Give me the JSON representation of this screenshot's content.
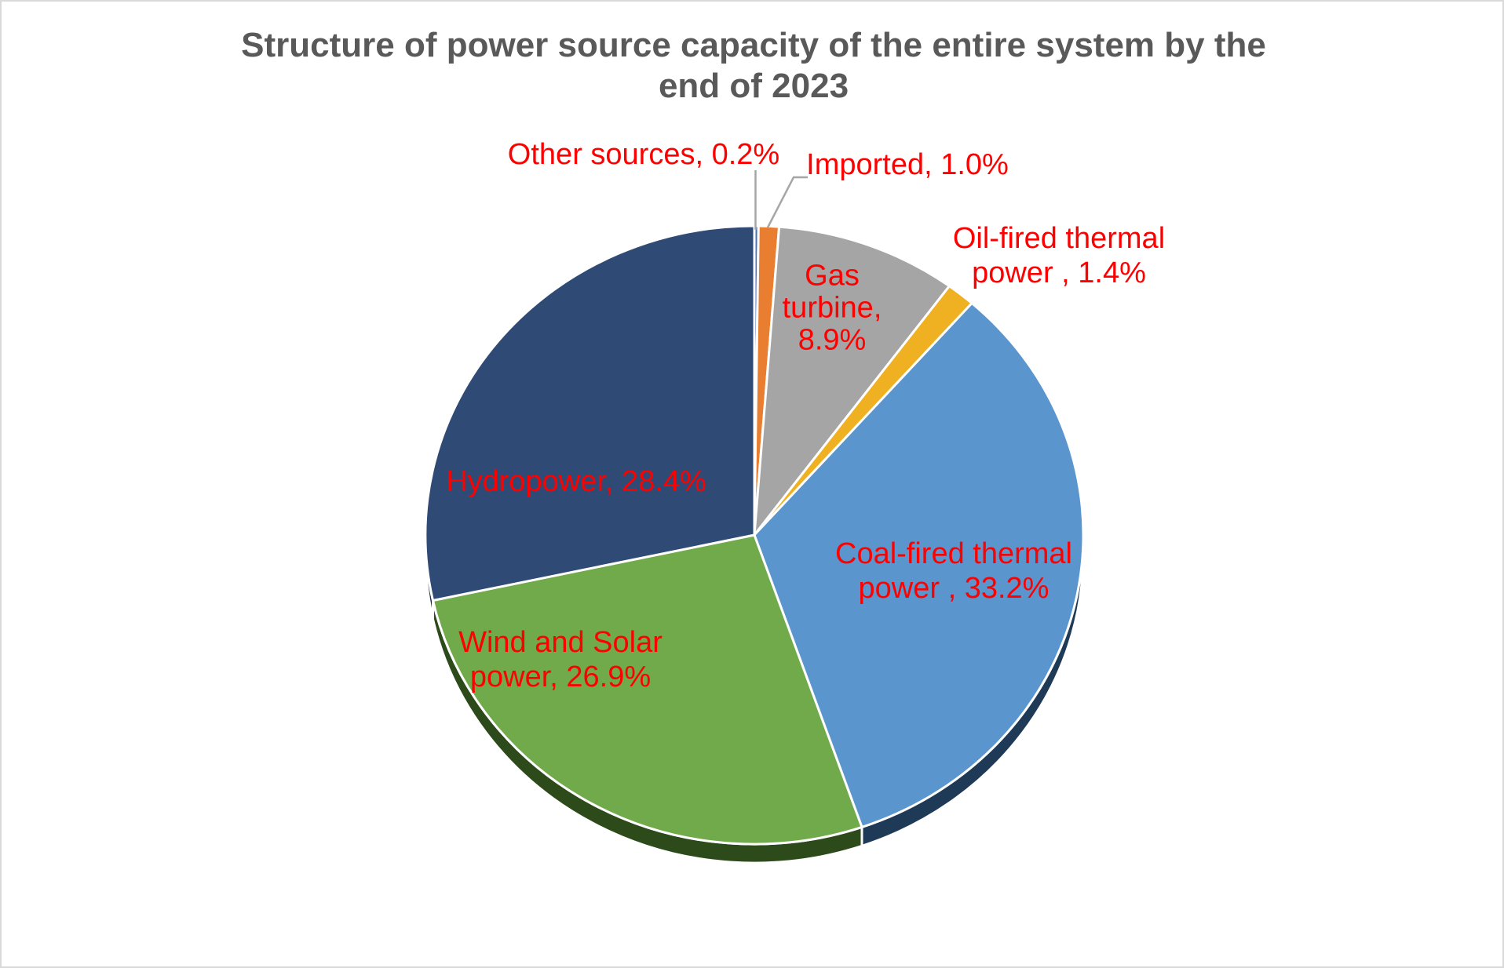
{
  "chart_data": {
    "type": "pie",
    "effect": "3d",
    "title": "Structure of power source capacity of the entire system by the\nend of 2023",
    "title_color": "#595959",
    "label_color": "#FF0000",
    "leader_color": "#A6A6A6",
    "background": "#FFFFFF",
    "border_color": "#D9D9D9",
    "start_angle_deg": 0,
    "direction": "clockwise",
    "unit": "%",
    "legend": "none",
    "slices": [
      {
        "name": "Other sources",
        "value": 0.2,
        "color": "#4472C4",
        "label": "Other sources, 0.2%"
      },
      {
        "name": "Imported",
        "value": 1.0,
        "color": "#E97E31",
        "label": "Imported, 1.0%"
      },
      {
        "name": "Gas turbine",
        "value": 8.9,
        "color": "#A5A5A5",
        "label": "Gas\nturbine,\n8.9%"
      },
      {
        "name": "Oil-fired thermal power",
        "value": 1.4,
        "color": "#EFB021",
        "label": "Oil-fired thermal\npower , 1.4%"
      },
      {
        "name": "Coal-fired thermal power",
        "value": 33.2,
        "color": "#5B95CD",
        "rim_color": "#1E3A57",
        "label": "Coal-fired thermal\npower , 33.2%"
      },
      {
        "name": "Wind and Solar power",
        "value": 26.9,
        "color": "#70AA4B",
        "rim_color": "#2C4A1A",
        "label": "Wind and Solar\npower, 26.9%"
      },
      {
        "name": "Hydropower",
        "value": 28.4,
        "color": "#2E4A75",
        "rim_color": "#1B2E4D",
        "label": "Hydropower, 28.4%"
      }
    ]
  }
}
